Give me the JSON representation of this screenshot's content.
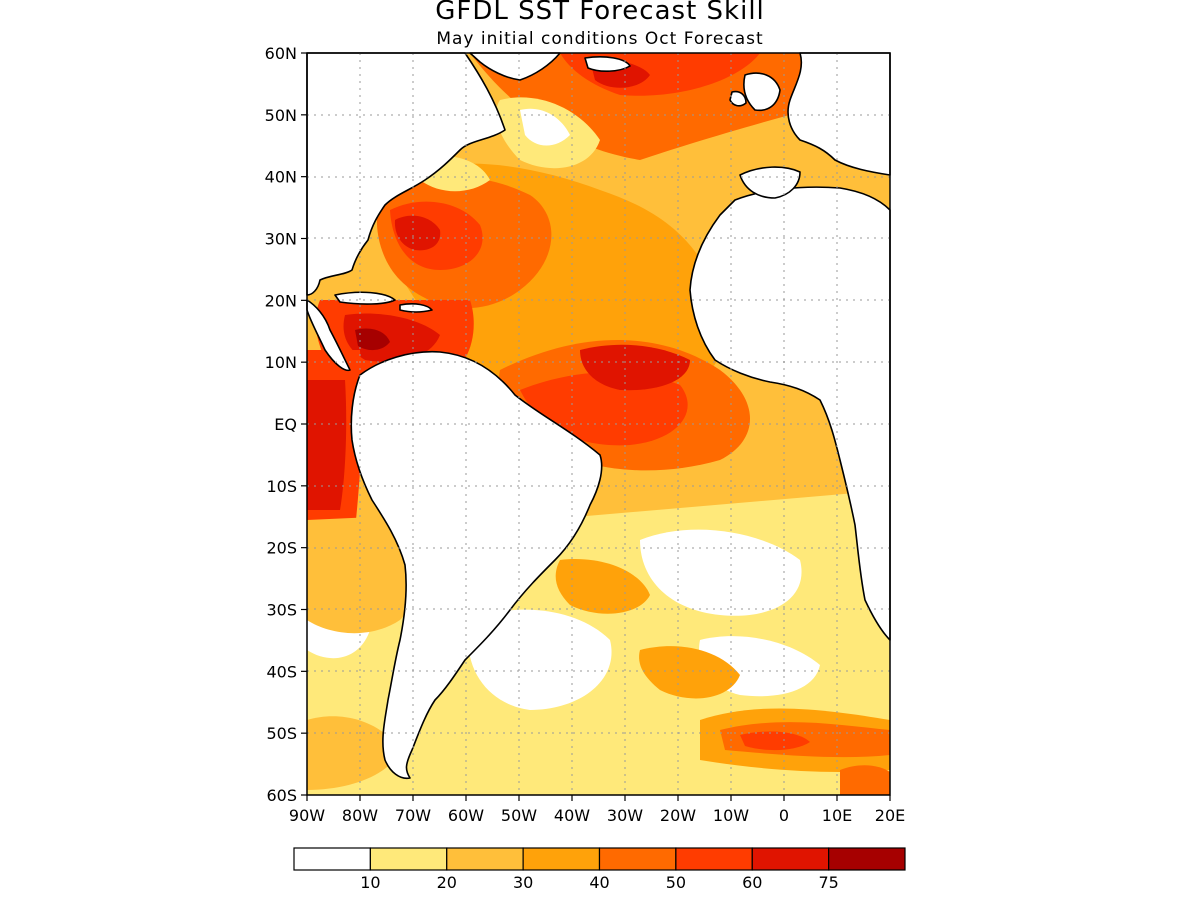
{
  "header": {
    "title": "GFDL SST Forecast Skill",
    "subtitle": "May initial conditions  Oct Forecast"
  },
  "map": {
    "lon_range": [
      -90,
      20
    ],
    "lat_range": [
      -60,
      60
    ],
    "lat_labels": [
      "60N",
      "50N",
      "40N",
      "30N",
      "20N",
      "10N",
      "EQ",
      "10S",
      "20S",
      "30S",
      "40S",
      "50S",
      "60S"
    ],
    "lon_labels": [
      "90W",
      "80W",
      "70W",
      "60W",
      "50W",
      "40W",
      "30W",
      "20W",
      "10W",
      "0",
      "10E",
      "20E"
    ],
    "land_color": "#ffffff",
    "coast_color": "#000000",
    "grid": true
  },
  "colorbar": {
    "colors": [
      "#ffffff",
      "#ffe97a",
      "#ffbf3a",
      "#ffa20a",
      "#ff6a00",
      "#ff3c00",
      "#e01400",
      "#a60000"
    ],
    "labels": [
      "10",
      "20",
      "30",
      "40",
      "50",
      "60",
      "75"
    ]
  }
}
